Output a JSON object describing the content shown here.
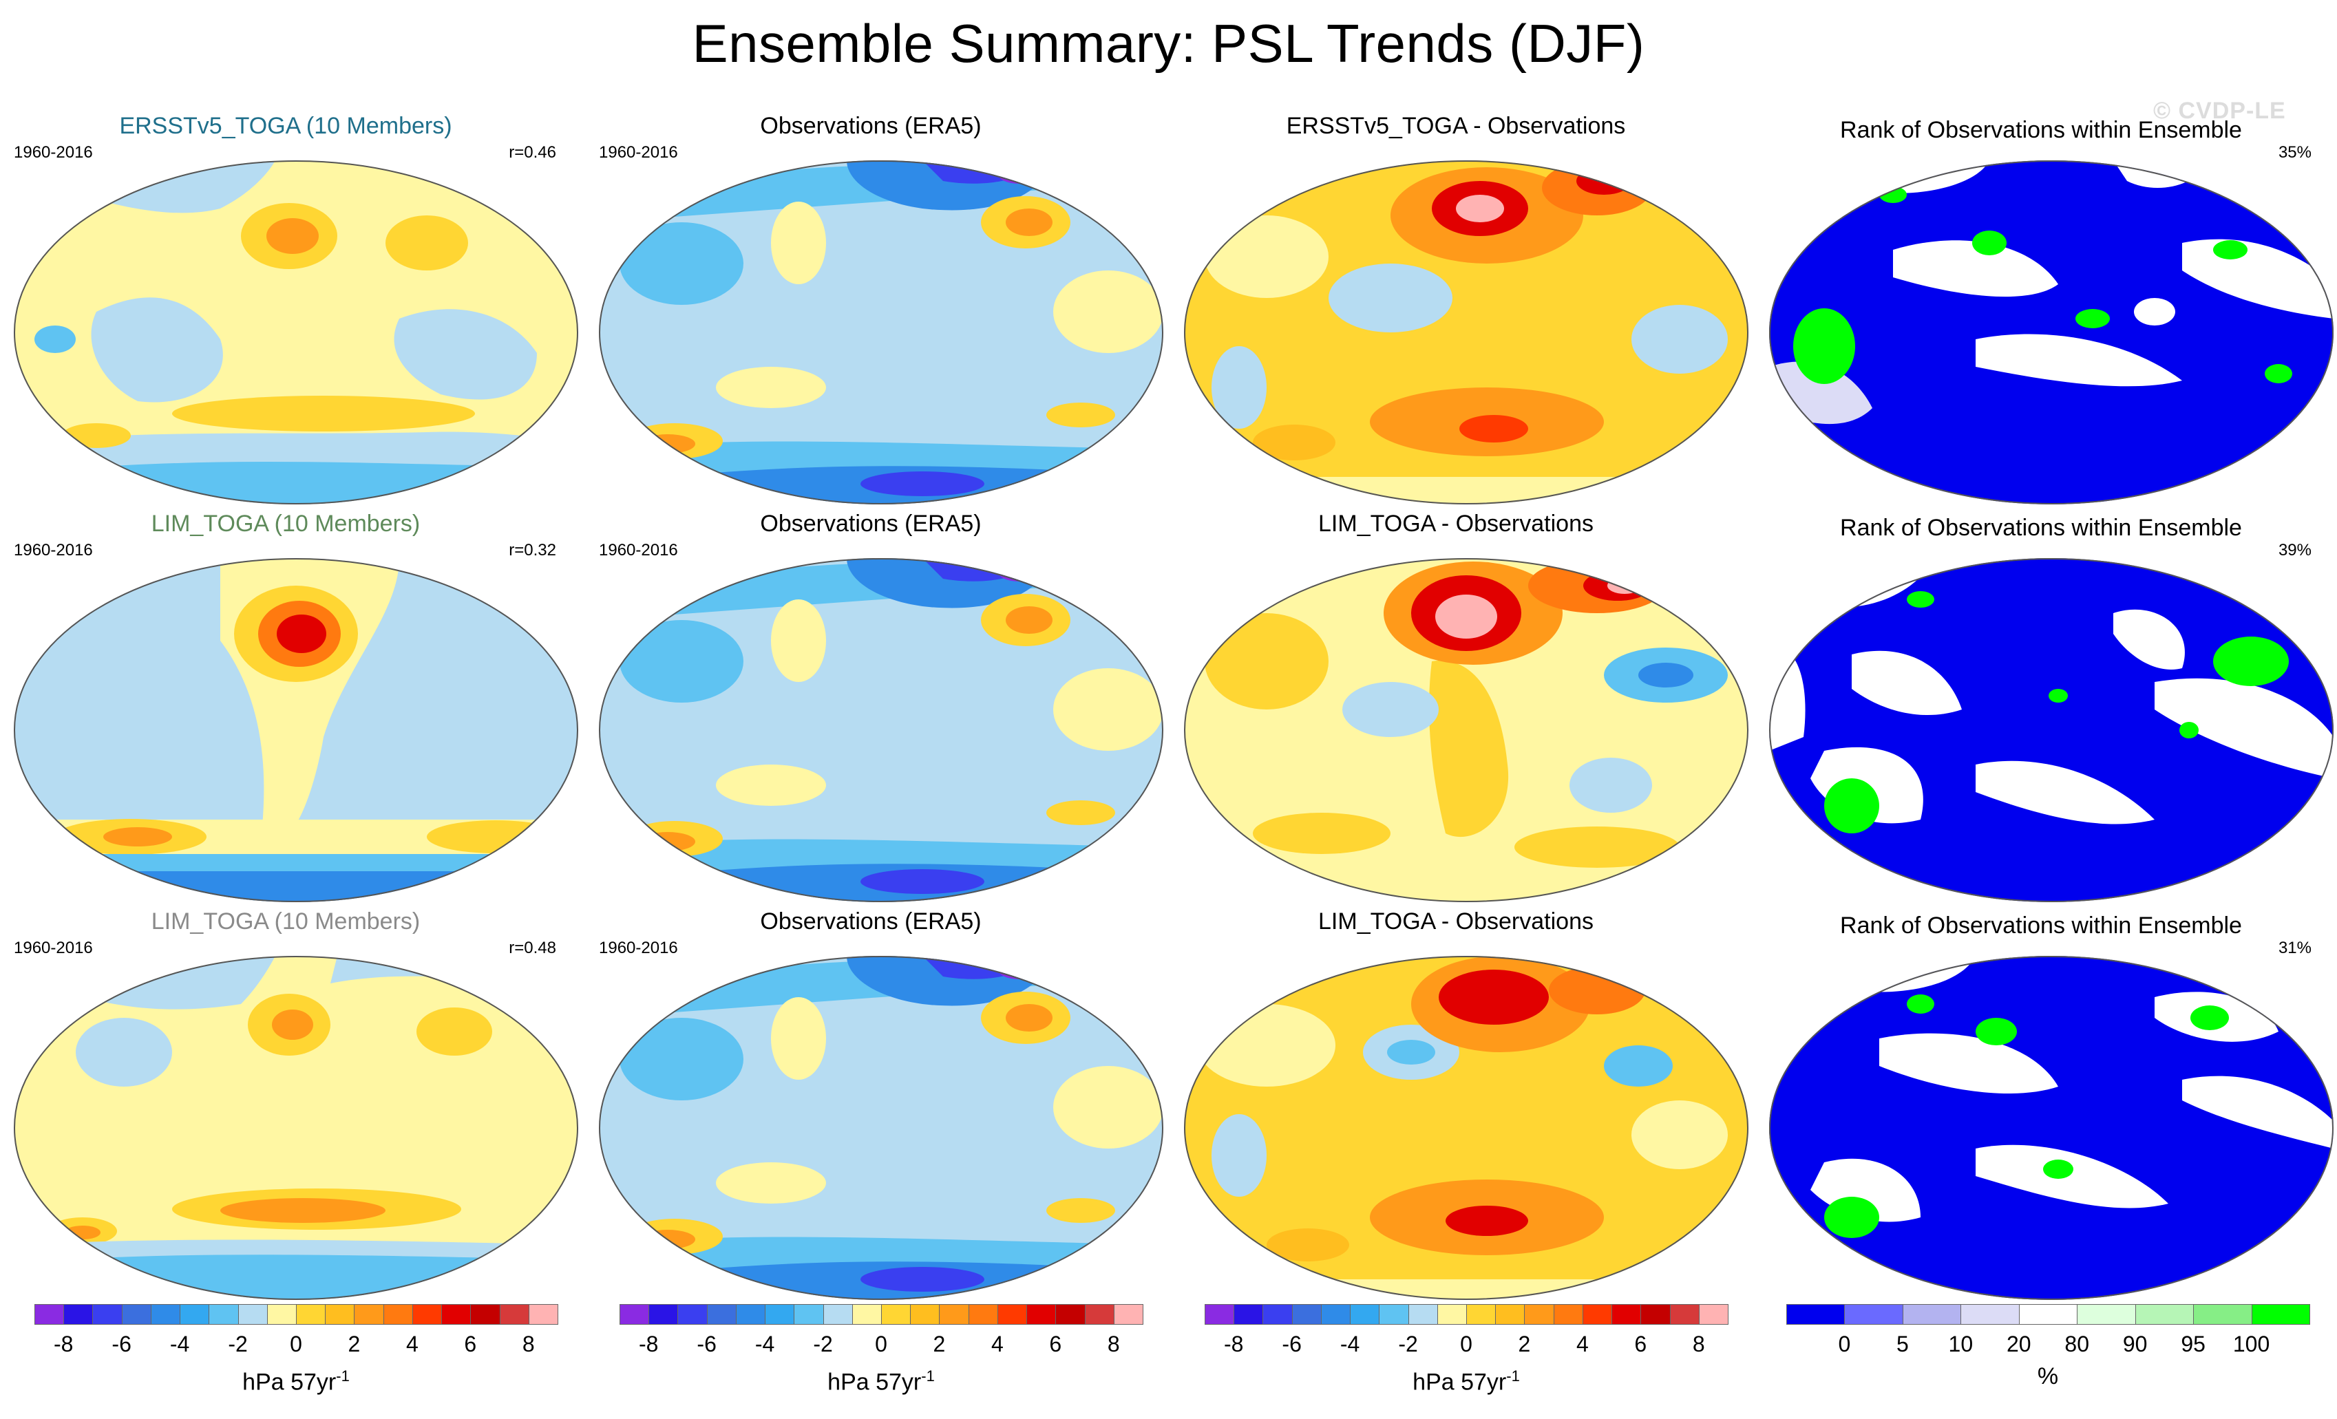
{
  "title": "Ensemble Summary: PSL Trends (DJF)",
  "watermark": "© CVDP-LE",
  "rows": [
    {
      "ensemble": {
        "title": "ERSSTv5_TOGA (10 Members)",
        "title_color": "#1f6f8b",
        "years": "1960-2016",
        "r": "r=0.46"
      },
      "obs": {
        "title": "Observations (ERA5)",
        "years": "1960-2016"
      },
      "diff": {
        "title": "ERSSTv5_TOGA - Observations"
      },
      "rank": {
        "title": "Rank of Observations within Ensemble",
        "pct": "35%"
      }
    },
    {
      "ensemble": {
        "title": "LIM_TOGA (10 Members)",
        "title_color": "#5e8a5a",
        "years": "1960-2016",
        "r": "r=0.32"
      },
      "obs": {
        "title": "Observations (ERA5)",
        "years": "1960-2016"
      },
      "diff": {
        "title": "LIM_TOGA - Observations"
      },
      "rank": {
        "title": "Rank of Observations within Ensemble",
        "pct": "39%"
      }
    },
    {
      "ensemble": {
        "title": "LIM_TOGA (10 Members)",
        "title_color": "#8a8a8a",
        "years": "1960-2016",
        "r": "r=0.48"
      },
      "obs": {
        "title": "Observations (ERA5)",
        "years": "1960-2016"
      },
      "diff": {
        "title": "LIM_TOGA - Observations"
      },
      "rank": {
        "title": "Rank of Observations within Ensemble",
        "pct": "31%"
      }
    }
  ],
  "colorbar_psl": {
    "colors": [
      "#8a2be2",
      "#2a14e6",
      "#3a3ff0",
      "#3b6fde",
      "#2f8be8",
      "#33a8f0",
      "#5fc3f2",
      "#b6dcf2",
      "#fff7a3",
      "#ffd633",
      "#ffbe1f",
      "#ff9a1a",
      "#ff7a10",
      "#ff3a00",
      "#e10000",
      "#c40000",
      "#d63a3a",
      "#ffb3b3"
    ],
    "tick_labels": [
      "-8",
      "-6",
      "-4",
      "-2",
      "0",
      "2",
      "4",
      "6",
      "8"
    ],
    "units_text": "hPa 57yr",
    "units_sup": "-1"
  },
  "colorbar_rank": {
    "colors": [
      "#0000ee",
      "#6a6aff",
      "#b3b3f0",
      "#dcdcf6",
      "#ffffff",
      "#ddffdd",
      "#b6f5b6",
      "#86ee86",
      "#00ff00"
    ],
    "tick_labels": [
      "0",
      "5",
      "10",
      "20",
      "80",
      "90",
      "95",
      "100"
    ],
    "units_text": "%"
  }
}
